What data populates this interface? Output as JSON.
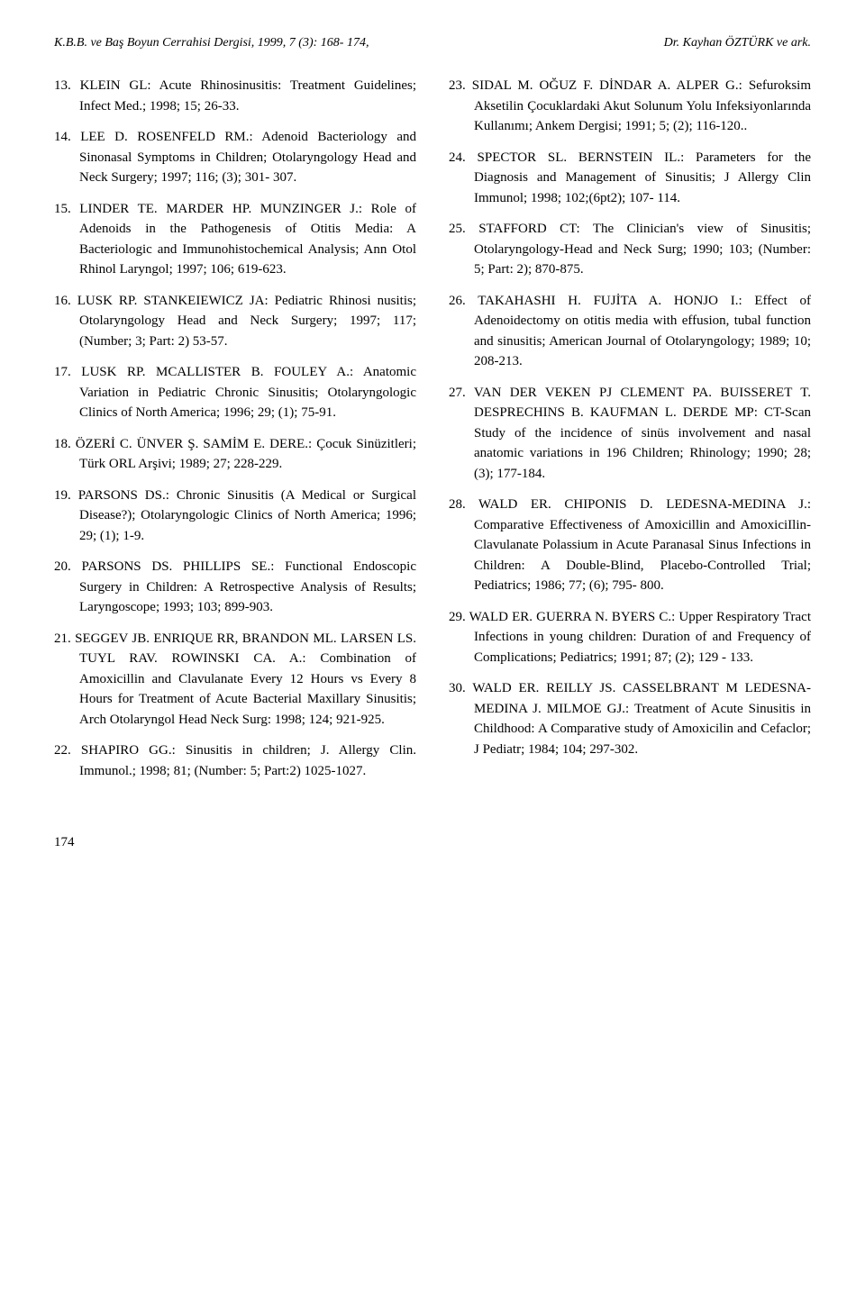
{
  "header": {
    "left": "K.B.B. ve Baş Boyun Cerrahisi Dergisi, 1999, 7 (3): 168- 174,",
    "right": "Dr. Kayhan ÖZTÜRK ve ark."
  },
  "left_refs": [
    "13.  KLEIN GL: Acute Rhinosinusitis: Treatment Guidelines; Infect Med.; 1998; 15; 26-33.",
    "14.  LEE D. ROSENFELD RM.: Adenoid Bacteriology and Sinonasal Symptoms in Children; Otolaryngology Head and Neck Surgery; 1997; 116; (3); 301- 307.",
    "15.  LINDER TE. MARDER HP. MUNZINGER J.: Role of Adenoids in the Pathogenesis of Otitis Media: A Bacteriologic and Immunohistochemical Analysis; Ann Otol Rhinol Laryngol; 1997; 106; 619-623.",
    "16.  LUSK RP. STANKEIEWICZ JA: Pediatric Rhinosi nusitis; Otolaryngology Head and Neck Surgery; 1997; 117; (Number; 3; Part: 2) 53-57.",
    "17.  LUSK RP. MCALLISTER B. FOULEY A.: Anatomic Variation in Pediatric Chronic Sinusitis; Otolaryngologic Clinics of North America; 1996; 29; (1); 75-91.",
    "18.  ÖZERİ C. ÜNVER Ş. SAMİM E. DERE.: Çocuk Sinüzitleri; Türk ORL Arşivi; 1989; 27; 228-229.",
    "19.  PARSONS DS.: Chronic Sinusitis (A Medical or Surgical Disease?); Otolaryngologic Clinics of North America; 1996; 29; (1); 1-9.",
    "20.  PARSONS DS. PHILLIPS SE.: Functional Endoscopic Surgery in Children: A Retrospective Analysis of Results; Laryngoscope; 1993; 103; 899-903.",
    "21.  SEGGEV JB. ENRIQUE RR, BRANDON ML. LARSEN LS. TUYL RAV. ROWINSKI CA. A.: Combination of Amoxicillin and Clavulanate Every 12 Hours vs Every 8 Hours for Treatment of Acute Bacterial Maxillary Sinusitis; Arch Otolaryngol Head Neck Surg: 1998; 124; 921-925.",
    "22.  SHAPIRO GG.: Sinusitis in children; J. Allergy Clin. Immunol.; 1998; 81; (Number: 5; Part:2) 1025-1027."
  ],
  "right_refs": [
    "23.  SIDAL M. OĞUZ F. DİNDAR A. ALPER G.: Sefuroksim Aksetilin Çocuklardaki Akut Solunum Yolu Infeksiyonlarında Kullanımı; Ankem Dergisi; 1991; 5; (2); 116-120..",
    "24.  SPECTOR SL. BERNSTEIN IL.: Parameters for the Diagnosis and Management of Sinusitis; J Allergy Clin Immunol; 1998; 102;(6pt2); 107- 114.",
    "25.  STAFFORD CT: The Clinician's view of Sinusitis; Otolaryngology-Head and Neck Surg; 1990; 103; (Number: 5; Part: 2); 870-875.",
    "26.  TAKAHASHI H. FUJİTA A. HONJO I.: Effect of Adenoidectomy on otitis media with effusion, tubal function and sinusitis; American Journal of Otolaryngology; 1989; 10; 208-213.",
    "27.  VAN DER VEKEN PJ CLEMENT PA. BUISSERET T. DESPRECHINS B. KAUFMAN L. DERDE MP: CT-Scan Study of the incidence of sinüs involvement and nasal anatomic variations in 196 Children; Rhinology; 1990; 28; (3); 177-184.",
    "28.  WALD ER. CHIPONIS D. LEDESNA-MEDINA J.: Comparative Effectiveness of Amoxicillin and AmoxiciIlin-Clavulanate Polassium in Acute Paranasal Sinus Infections in Children: A Double-Blind, Placebo-Controlled Trial; Pediatrics; 1986; 77; (6); 795- 800.",
    "29.  WALD ER. GUERRA N. BYERS C.: Upper Respiratory Tract Infections in young children: Duration of and Frequency of Complications; Pediatrics; 1991; 87; (2); 129 - 133.",
    "30.  WALD ER. REILLY JS. CASSELBRANT M LEDESNA-MEDINA J. MILMOE GJ.: Treatment of Acute Sinusitis in Childhood: A Comparative study of Amoxicilin and Cefaclor; J Pediatr; 1984; 104; 297-302."
  ],
  "page_number": "174"
}
